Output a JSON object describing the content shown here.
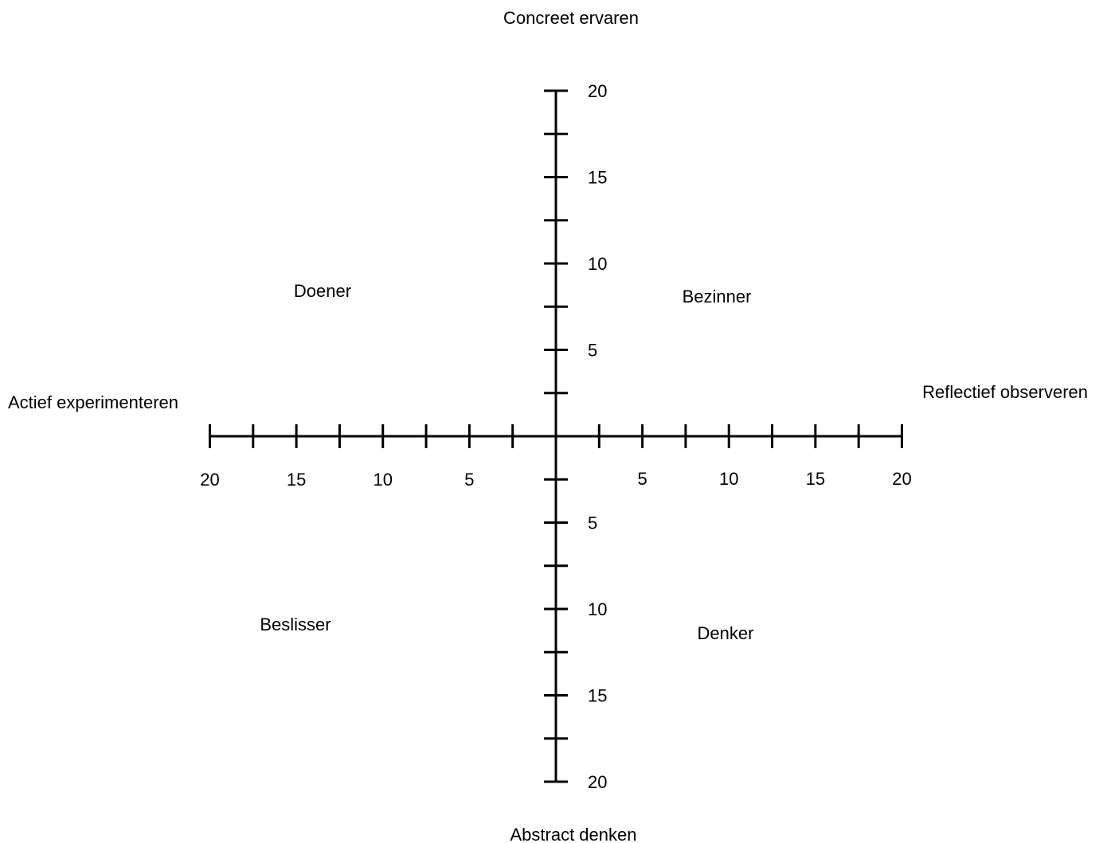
{
  "poles": {
    "top": "Concreet ervaren",
    "bottom": "Abstract denken",
    "left": "Actief experimenteren",
    "right": "Reflectief observeren"
  },
  "quadrants": {
    "top_left": "Doener",
    "top_right": "Bezinner",
    "bottom_left": "Beslisser",
    "bottom_right": "Denker"
  },
  "axes": {
    "max": 20,
    "tick_step": 2.5,
    "label_values": [
      5,
      10,
      15,
      20
    ]
  },
  "tick_labels": {
    "up": [
      "5",
      "10",
      "15",
      "20"
    ],
    "down": [
      "5",
      "10",
      "15",
      "20"
    ],
    "left": [
      "5",
      "10",
      "15",
      "20"
    ],
    "right": [
      "5",
      "10",
      "15",
      "20"
    ]
  },
  "colors": {
    "line": "#000000",
    "text": "#000000",
    "background": "#ffffff"
  }
}
